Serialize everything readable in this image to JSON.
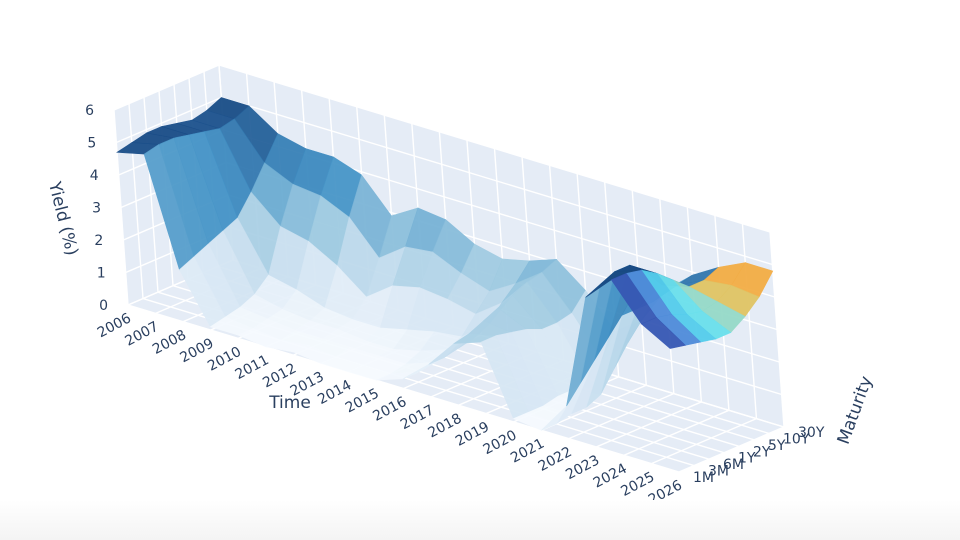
{
  "chart_data": {
    "type": "surface",
    "title": "",
    "axes": {
      "x": {
        "title": "Time",
        "ticks": [
          "2006",
          "2007",
          "2008",
          "2009",
          "2010",
          "2011",
          "2012",
          "2013",
          "2014",
          "2015",
          "2016",
          "2017",
          "2018",
          "2019",
          "2020",
          "2021",
          "2022",
          "2023",
          "2024",
          "2025",
          "2026"
        ],
        "range": [
          2006,
          2026
        ]
      },
      "y": {
        "title": "Maturity",
        "ticks": [
          "1M",
          "3M",
          "6M",
          "1Y",
          "2Y",
          "5Y",
          "10Y",
          "30Y"
        ]
      },
      "z": {
        "title": "Yield (%)",
        "ticks": [
          "0",
          "1",
          "2",
          "3",
          "4",
          "5",
          "6"
        ],
        "range": [
          0,
          6
        ]
      }
    },
    "z_values_approx": {
      "x": [
        2006,
        2007,
        2008,
        2009,
        2010,
        2011,
        2012,
        2013,
        2014,
        2015,
        2016,
        2017,
        2018,
        2019,
        2020,
        2021,
        2022,
        2023,
        2024,
        2025,
        2026
      ],
      "maturities": [
        "1M",
        "3M",
        "6M",
        "1Y",
        "2Y",
        "5Y",
        "10Y",
        "30Y"
      ],
      "values": [
        [
          4.7,
          4.8,
          4.9,
          4.9,
          4.8,
          4.7,
          4.8,
          5.0
        ],
        [
          4.9,
          5.0,
          5.0,
          4.9,
          4.8,
          4.7,
          4.8,
          5.0
        ],
        [
          1.6,
          1.8,
          2.0,
          2.2,
          2.4,
          3.0,
          3.7,
          4.4
        ],
        [
          0.1,
          0.2,
          0.3,
          0.5,
          0.9,
          2.2,
          3.3,
          4.2
        ],
        [
          0.1,
          0.1,
          0.2,
          0.3,
          0.7,
          2.0,
          3.2,
          4.2
        ],
        [
          0.0,
          0.0,
          0.1,
          0.2,
          0.4,
          1.5,
          2.8,
          3.9
        ],
        [
          0.1,
          0.1,
          0.1,
          0.2,
          0.3,
          0.8,
          1.8,
          2.9
        ],
        [
          0.0,
          0.0,
          0.1,
          0.1,
          0.3,
          1.4,
          2.4,
          3.4
        ],
        [
          0.0,
          0.0,
          0.1,
          0.1,
          0.5,
          1.6,
          2.5,
          3.3
        ],
        [
          0.0,
          0.0,
          0.1,
          0.3,
          0.7,
          1.5,
          2.1,
          2.8
        ],
        [
          0.3,
          0.3,
          0.4,
          0.6,
          0.8,
          1.3,
          1.8,
          2.6
        ],
        [
          1.0,
          1.0,
          1.1,
          1.2,
          1.4,
          1.9,
          2.3,
          2.8
        ],
        [
          1.9,
          2.0,
          2.2,
          2.4,
          2.6,
          2.8,
          2.9,
          3.1
        ],
        [
          2.2,
          2.2,
          2.1,
          2.0,
          1.8,
          1.8,
          1.9,
          2.4
        ],
        [
          0.1,
          0.1,
          0.1,
          0.2,
          0.2,
          0.4,
          0.7,
          1.4
        ],
        [
          0.0,
          0.0,
          0.1,
          0.1,
          0.3,
          0.9,
          1.5,
          2.0
        ],
        [
          1.0,
          1.5,
          2.0,
          2.5,
          3.0,
          3.0,
          3.0,
          3.2
        ],
        [
          4.6,
          4.8,
          5.0,
          5.0,
          4.6,
          4.0,
          3.8,
          3.9
        ],
        [
          5.4,
          5.4,
          5.3,
          5.0,
          4.6,
          4.2,
          4.2,
          4.4
        ],
        [
          4.3,
          4.3,
          4.2,
          4.0,
          3.9,
          4.0,
          4.3,
          4.8
        ],
        [
          3.8,
          3.7,
          3.6,
          3.5,
          3.5,
          3.8,
          4.2,
          4.8
        ]
      ]
    },
    "colorscale": [
      "#f7fbff",
      "#d6e6f4",
      "#9ecae1",
      "#4292c6",
      "#1a4f8a",
      "#10366a"
    ],
    "highlight_colorscale": [
      "#f9a23a",
      "#e8c25a",
      "#7fe0e6",
      "#55e0f2",
      "#4f86d8",
      "#2a3fa0"
    ],
    "grid": true,
    "legend": "none",
    "scene_background": "#e5ecf6",
    "gridline_color": "#ffffff"
  }
}
